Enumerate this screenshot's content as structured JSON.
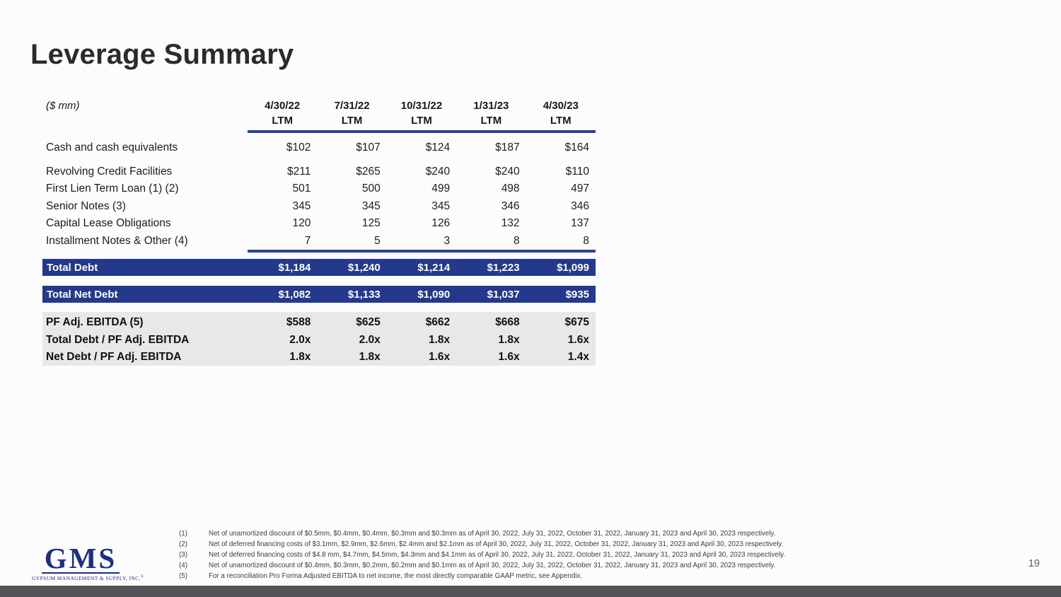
{
  "slide": {
    "title": "Leverage Summary",
    "page_number": "19"
  },
  "colors": {
    "bar_blue": "#24388C",
    "rule_blue": "#2B4296",
    "metrics_gray": "#E8E8E8",
    "footer_bar_gray": "#525257",
    "logo_navy": "#1D2F80"
  },
  "table": {
    "units_label": "($ mm)",
    "columns": [
      {
        "date": "4/30/22",
        "period": "LTM"
      },
      {
        "date": "7/31/22",
        "period": "LTM"
      },
      {
        "date": "10/31/22",
        "period": "LTM"
      },
      {
        "date": "1/31/23",
        "period": "LTM"
      },
      {
        "date": "4/30/23",
        "period": "LTM"
      }
    ],
    "rows": [
      {
        "label": "Cash and cash equivalents",
        "values": [
          "$102",
          "$107",
          "$124",
          "$187",
          "$164"
        ]
      },
      {
        "label": "Revolving Credit Facilities",
        "values": [
          "$211",
          "$265",
          "$240",
          "$240",
          "$110"
        ]
      },
      {
        "label": "First Lien Term Loan (1) (2)",
        "values": [
          "501",
          "500",
          "499",
          "498",
          "497"
        ]
      },
      {
        "label": "Senior Notes (3)",
        "values": [
          "345",
          "345",
          "345",
          "346",
          "346"
        ]
      },
      {
        "label": "Capital Lease Obligations",
        "values": [
          "120",
          "125",
          "126",
          "132",
          "137"
        ]
      },
      {
        "label": "Installment Notes & Other (4)",
        "values": [
          "7",
          "5",
          "3",
          "8",
          "8"
        ]
      }
    ],
    "total_debt": {
      "label": "Total Debt",
      "values": [
        "$1,184",
        "$1,240",
        "$1,214",
        "$1,223",
        "$1,099"
      ]
    },
    "total_net_debt": {
      "label": "Total Net Debt",
      "values": [
        "$1,082",
        "$1,133",
        "$1,090",
        "$1,037",
        "$935"
      ]
    },
    "metrics": [
      {
        "label": "PF Adj. EBITDA (5)",
        "values": [
          "$588",
          "$625",
          "$662",
          "$668",
          "$675"
        ]
      },
      {
        "label": "Total Debt / PF Adj. EBITDA",
        "values": [
          "2.0x",
          "2.0x",
          "1.8x",
          "1.8x",
          "1.6x"
        ]
      },
      {
        "label": "Net Debt / PF Adj. EBITDA",
        "values": [
          "1.8x",
          "1.8x",
          "1.6x",
          "1.6x",
          "1.4x"
        ]
      }
    ]
  },
  "footnotes": [
    {
      "marker": "(1)",
      "text": "Net of unamortized discount of $0.5mm, $0.4mm, $0.4mm, $0.3mm and $0.3mm as of April 30, 2022, July 31, 2022, October 31, 2022, January 31, 2023 and April 30, 2023 respectively."
    },
    {
      "marker": "(2)",
      "text": "Net of deferred financing costs of $3.1mm, $2.9mm, $2.6mm, $2.4mm and $2.1mm as of April 30, 2022, July 31, 2022, October 31, 2022, January 31, 2023 and April 30, 2023 respectively."
    },
    {
      "marker": "(3)",
      "text": "Net of deferred financing costs of $4.8 mm, $4.7mm, $4.5mm, $4.3mm and $4.1mm as of April 30, 2022, July 31, 2022, October 31, 2022, January 31, 2023 and April 30, 2023 respectively."
    },
    {
      "marker": "(4)",
      "text": "Net of unamortized discount of $0.4mm, $0.3mm, $0.2mm, $0.2mm and $0.1mm as of April 30, 2022, July 31, 2022, October 31, 2022, January 31, 2023 and April 30, 2023 respectively."
    },
    {
      "marker": "(5)",
      "text": "For a reconciliation Pro Forma Adjusted EBITDA to net income, the most directly comparable GAAP metric, see Appendix."
    }
  ],
  "logo": {
    "text": "GMS",
    "subtext": "GYPSUM MANAGEMENT & SUPPLY, INC.",
    "reg": "®"
  }
}
